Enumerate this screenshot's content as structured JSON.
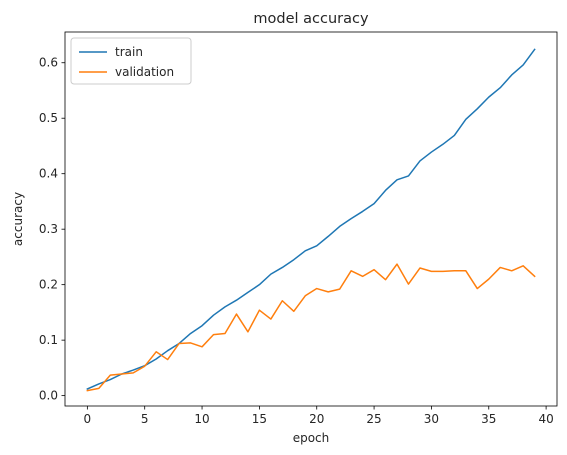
{
  "chart_data": {
    "type": "line",
    "title": "model accuracy",
    "xlabel": "epoch",
    "ylabel": "accuracy",
    "xlim": [
      -1.95,
      40.95
    ],
    "ylim": [
      -0.0187,
      0.6554
    ],
    "xticks": [
      0,
      5,
      10,
      15,
      20,
      25,
      30,
      35,
      40
    ],
    "yticks": [
      0.0,
      0.1,
      0.2,
      0.3,
      0.4,
      0.5,
      0.6
    ],
    "ytick_format": 1,
    "grid": false,
    "legend": "top-left",
    "x": [
      0,
      1,
      2,
      3,
      4,
      5,
      6,
      7,
      8,
      9,
      10,
      11,
      12,
      13,
      14,
      15,
      16,
      17,
      18,
      19,
      20,
      21,
      22,
      23,
      24,
      25,
      26,
      27,
      28,
      29,
      30,
      31,
      32,
      33,
      34,
      35,
      36,
      37,
      38,
      39
    ],
    "series": [
      {
        "name": "train",
        "color": "#1f77b4",
        "values": [
          0.012,
          0.021,
          0.029,
          0.039,
          0.046,
          0.054,
          0.066,
          0.081,
          0.094,
          0.112,
          0.126,
          0.145,
          0.16,
          0.172,
          0.186,
          0.2,
          0.219,
          0.231,
          0.245,
          0.261,
          0.27,
          0.287,
          0.305,
          0.319,
          0.332,
          0.346,
          0.37,
          0.389,
          0.396,
          0.423,
          0.439,
          0.453,
          0.469,
          0.498,
          0.517,
          0.538,
          0.555,
          0.578,
          0.596,
          0.624
        ]
      },
      {
        "name": "validation",
        "color": "#ff7f0e",
        "values": [
          0.009,
          0.013,
          0.037,
          0.039,
          0.041,
          0.053,
          0.079,
          0.065,
          0.094,
          0.095,
          0.088,
          0.11,
          0.112,
          0.147,
          0.115,
          0.154,
          0.138,
          0.171,
          0.152,
          0.18,
          0.193,
          0.187,
          0.192,
          0.225,
          0.215,
          0.227,
          0.209,
          0.237,
          0.201,
          0.23,
          0.224,
          0.224,
          0.225,
          0.225,
          0.193,
          0.21,
          0.231,
          0.225,
          0.234,
          0.215
        ]
      }
    ]
  }
}
